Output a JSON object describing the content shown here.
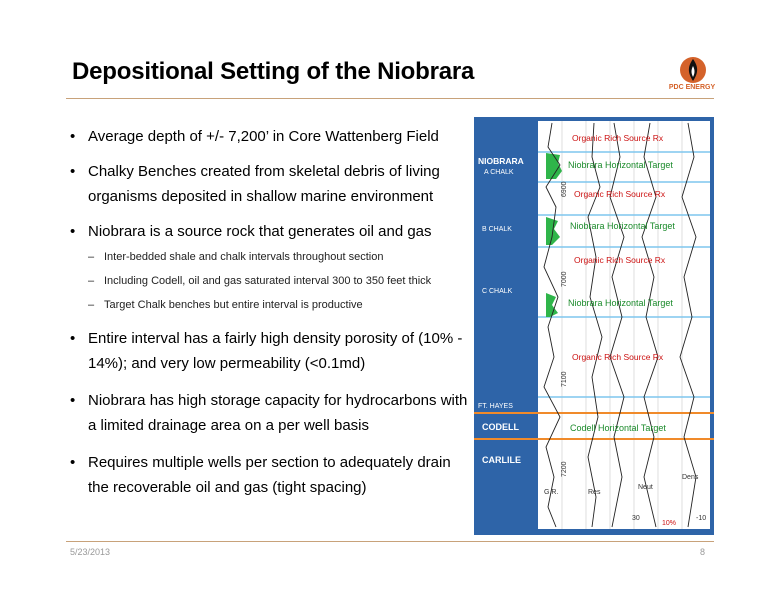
{
  "title": "Depositional Setting of the Niobrara",
  "logo": {
    "icon": "pdc-flame-logo-icon",
    "text": "PDC ENERGY",
    "color": "#d4622a"
  },
  "bullets": [
    {
      "level": 1,
      "text": "Average depth of +/- 7,200’ in Core Wattenberg Field"
    },
    {
      "level": 1,
      "text": "Chalky Benches created from skeletal debris of living organisms deposited in shallow marine environment"
    },
    {
      "level": 1,
      "text": "Niobrara is a source rock that generates oil and gas"
    },
    {
      "level": 2,
      "text": "Inter-bedded shale and chalk intervals throughout section"
    },
    {
      "level": 2,
      "text": "Including Codell, oil and gas saturated interval 300 to 350 feet thick"
    },
    {
      "level": 2,
      "text": "Target Chalk benches but entire interval is productive"
    },
    {
      "level": 1,
      "text": "Entire interval has a fairly high density porosity of (10% - 14%); and very low permeability (<0.1md)"
    },
    {
      "level": 1,
      "text": "Niobrara has high storage capacity for hydrocarbons with a limited drainage area on a per well basis"
    },
    {
      "level": 1,
      "text": "Requires multiple wells per section to adequately drain the recoverable oil and gas (tight spacing)"
    }
  ],
  "log": {
    "formations": {
      "niobrara": "NIOBRARA",
      "a_chalk": "A CHALK",
      "b_chalk": "B CHALK",
      "c_chalk": "C CHALK",
      "ft_hayes": "FT. HAYES",
      "codell": "CODELL",
      "carlile": "CARLILE"
    },
    "depths": [
      "6900",
      "7000",
      "7100",
      "7200"
    ],
    "annotations": {
      "source_1": "Organic Rich Source Rx",
      "target_a": "Niobrara Horizontal Target",
      "source_2": "Organic Rich Source Rx",
      "target_b": "Niobrara Horizontal Target",
      "source_3": "Organic Rich Source Rx",
      "target_c": "Niobrara Horizontal Target",
      "source_4": "Organic Rich Source Rx",
      "target_codell": "Codell Horizontal Target"
    },
    "curves": {
      "gr": "G.R.",
      "res": "Res",
      "neut": "Neut",
      "dens": "Dens"
    },
    "scale": {
      "left": "30",
      "right": "-10",
      "mid": "10%"
    },
    "colors": {
      "panel": "#2e64a8",
      "source": "#cc1111",
      "target": "#1a8a2a",
      "codell_line": "#f08a2a",
      "blue_line": "#7ec6ee"
    }
  },
  "footer": {
    "date": "5/23/2013",
    "page": "8"
  }
}
